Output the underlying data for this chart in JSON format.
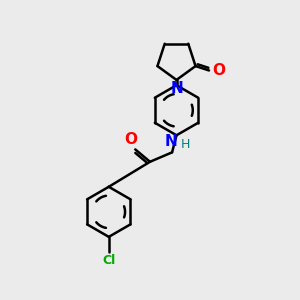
{
  "background_color": "#ebebeb",
  "bond_color": "#000000",
  "n_color": "#0000ff",
  "o_color": "#ff0000",
  "cl_color": "#00aa00",
  "h_color": "#008080",
  "line_width": 1.8,
  "figsize": [
    3.0,
    3.0
  ],
  "dpi": 100,
  "xlim": [
    0,
    10
  ],
  "ylim": [
    0,
    10
  ]
}
